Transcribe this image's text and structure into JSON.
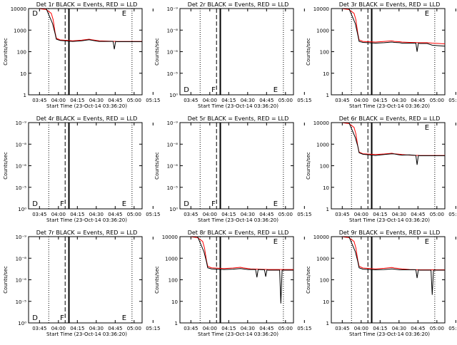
{
  "page": {
    "background": "#ffffff",
    "colors": {
      "events": "#000000",
      "lld": "#ff0000",
      "axis": "#000000"
    }
  },
  "chart_data": [
    {
      "type": "line",
      "detector": "1r",
      "scale": "log",
      "ylim": [
        1,
        10000
      ],
      "title": "Det 1r BLACK = Events, RED = LLD",
      "xlabel": "Start Time (23-Oct-14 03:36:20)",
      "ylabel": "Counts/sec",
      "xticks": [
        "03:45",
        "04:00",
        "04:15",
        "04:30",
        "04:45",
        "05:00",
        "05:15"
      ],
      "yticks": [
        "1",
        "10",
        "100",
        "1000",
        "10000"
      ],
      "markers": [
        {
          "label": "D",
          "t": 3
        },
        {
          "label": "E",
          "t": 74
        }
      ],
      "events_t": [
        0,
        8,
        14,
        19,
        21,
        22,
        25,
        35,
        42,
        48,
        50,
        54,
        56,
        62,
        67,
        68,
        69,
        70,
        76,
        80,
        85,
        90
      ],
      "events_v": [
        10000,
        10000,
        10000,
        2000,
        700,
        380,
        330,
        300,
        320,
        360,
        340,
        310,
        300,
        300,
        300,
        130,
        300,
        290,
        290,
        290,
        290,
        290
      ],
      "lld_t": [
        0,
        8,
        14,
        18,
        19.5,
        21,
        22,
        25,
        35,
        42,
        48,
        50,
        54,
        56,
        62,
        70,
        76,
        80,
        85,
        90
      ],
      "lld_v": [
        10000,
        10000,
        9000,
        6000,
        3000,
        800,
        420,
        350,
        320,
        340,
        380,
        360,
        330,
        320,
        310,
        300,
        300,
        300,
        300,
        300
      ]
    },
    {
      "type": "line",
      "detector": "2r",
      "scale": "exp",
      "title": "Det 2r BLACK = Events, RED = LLD",
      "xlabel": "Start Time (23-Oct-14 03:36:20)",
      "ylabel": "Counts/sec",
      "xticks": [
        "03:45",
        "04:00",
        "04:15",
        "04:30",
        "04:45",
        "05:00",
        "05:15"
      ],
      "yticks": [
        "10⁰",
        "10⁻⁵",
        "10⁻⁶",
        "10⁻⁸",
        "10⁻⁹"
      ],
      "markers": [
        {
          "label": "D",
          "t": 3
        },
        {
          "label": "F",
          "t": 25
        },
        {
          "label": "E",
          "t": 74
        }
      ],
      "events_t": [],
      "events_v": [],
      "lld_t": [],
      "lld_v": []
    },
    {
      "type": "line",
      "detector": "3r",
      "scale": "log",
      "ylim": [
        1,
        10000
      ],
      "title": "Det 3r BLACK = Events, RED = LLD",
      "xlabel": "Start Time (23-Oct-14 03:36:20)",
      "ylabel": "Counts/sec",
      "xticks": [
        "03:45",
        "04:00",
        "04:15",
        "04:30",
        "04:45",
        "05:00",
        "05:15"
      ],
      "yticks": [
        "1",
        "10",
        "100",
        "1000",
        "10000"
      ],
      "markers": [
        {
          "label": "E",
          "t": 74
        }
      ],
      "events_t": [
        0,
        8,
        14,
        19,
        21,
        22,
        25,
        35,
        42,
        48,
        50,
        54,
        56,
        62,
        67,
        68,
        69,
        70,
        76,
        80,
        85,
        90
      ],
      "events_v": [
        10000,
        10000,
        10000,
        2000,
        600,
        300,
        270,
        250,
        260,
        280,
        270,
        260,
        250,
        250,
        250,
        100,
        250,
        240,
        240,
        200,
        190,
        180
      ],
      "lld_t": [
        0,
        8,
        14,
        18,
        19.5,
        21,
        22,
        25,
        35,
        42,
        48,
        50,
        54,
        56,
        62,
        70,
        76,
        80,
        85,
        90
      ],
      "lld_v": [
        10000,
        10000,
        9000,
        6000,
        3000,
        700,
        350,
        300,
        280,
        300,
        320,
        300,
        290,
        280,
        270,
        260,
        260,
        250,
        240,
        230
      ]
    },
    {
      "type": "line",
      "detector": "4r",
      "scale": "exp",
      "title": "Det 4r BLACK = Events, RED = LLD",
      "xlabel": "Start Time (23-Oct-14 03:36:20)",
      "ylabel": "Counts/sec",
      "xticks": [
        "03:45",
        "04:00",
        "04:15",
        "04:30",
        "04:45",
        "05:00",
        "05:15"
      ],
      "yticks": [
        "10⁰",
        "10⁻⁵",
        "10⁻⁶",
        "10⁻⁸",
        "10⁻⁹"
      ],
      "markers": [
        {
          "label": "D",
          "t": 3
        },
        {
          "label": "F",
          "t": 25
        },
        {
          "label": "E",
          "t": 74
        }
      ],
      "events_t": [],
      "events_v": [],
      "lld_t": [],
      "lld_v": []
    },
    {
      "type": "line",
      "detector": "5r",
      "scale": "exp",
      "title": "Det 5r BLACK = Events, RED = LLD",
      "xlabel": "Start Time (23-Oct-14 03:36:20)",
      "ylabel": "Counts/sec",
      "xticks": [
        "03:45",
        "04:00",
        "04:15",
        "04:30",
        "04:45",
        "05:00",
        "05:15"
      ],
      "yticks": [
        "10⁰",
        "10⁻⁵",
        "10⁻⁶",
        "10⁻⁸",
        "10⁻⁹"
      ],
      "markers": [
        {
          "label": "D",
          "t": 3
        },
        {
          "label": "F",
          "t": 25
        },
        {
          "label": "E",
          "t": 74
        }
      ],
      "events_t": [],
      "events_v": [],
      "lld_t": [],
      "lld_v": []
    },
    {
      "type": "line",
      "detector": "6r",
      "scale": "log",
      "ylim": [
        1,
        10000
      ],
      "title": "Det 6r BLACK = Events, RED = LLD",
      "xlabel": "Start Time (23-Oct-14 03:36:20)",
      "ylabel": "Counts/sec",
      "xticks": [
        "03:45",
        "04:00",
        "04:15",
        "04:30",
        "04:45",
        "05:00",
        "05:15"
      ],
      "yticks": [
        "1",
        "10",
        "100",
        "1000",
        "10000"
      ],
      "markers": [
        {
          "label": "E",
          "t": 74
        }
      ],
      "events_t": [
        0,
        8,
        14,
        19,
        21,
        22,
        25,
        35,
        42,
        48,
        50,
        54,
        56,
        62,
        67,
        68,
        69,
        70,
        76,
        80,
        85,
        90
      ],
      "events_v": [
        10000,
        10000,
        10000,
        2000,
        800,
        400,
        340,
        300,
        330,
        360,
        350,
        320,
        310,
        320,
        300,
        110,
        300,
        290,
        290,
        290,
        290,
        290
      ],
      "lld_t": [
        0,
        8,
        14,
        18,
        19.5,
        21,
        22,
        25,
        35,
        42,
        48,
        50,
        54,
        56,
        62,
        70,
        76,
        80,
        85,
        90
      ],
      "lld_v": [
        10000,
        10000,
        9000,
        6000,
        3000,
        800,
        430,
        360,
        330,
        350,
        380,
        360,
        340,
        330,
        310,
        300,
        300,
        300,
        300,
        300
      ]
    },
    {
      "type": "line",
      "detector": "7r",
      "scale": "exp",
      "title": "Det 7r BLACK = Events, RED = LLD",
      "xlabel": "Start Time (23-Oct-14 03:36:20)",
      "ylabel": "Counts/sec",
      "xticks": [
        "03:45",
        "04:00",
        "04:15",
        "04:30",
        "04:45",
        "05:00",
        "05:15"
      ],
      "yticks": [
        "10⁰",
        "10⁻⁵",
        "10⁻⁶",
        "10⁻⁸",
        "10⁻⁹"
      ],
      "markers": [
        {
          "label": "D",
          "t": 3
        },
        {
          "label": "F",
          "t": 25
        },
        {
          "label": "E",
          "t": 74
        }
      ],
      "events_t": [],
      "events_v": [],
      "lld_t": [],
      "lld_v": []
    },
    {
      "type": "line",
      "detector": "8r",
      "scale": "log",
      "ylim": [
        1,
        10000
      ],
      "title": "Det 8r BLACK = Events, RED = LLD",
      "xlabel": "Start Time (23-Oct-14 03:36:20)",
      "ylabel": "Counts/sec",
      "xticks": [
        "03:45",
        "04:00",
        "04:15",
        "04:30",
        "04:45",
        "05:00",
        "05:15"
      ],
      "yticks": [
        "1",
        "10",
        "100",
        "1000",
        "10000"
      ],
      "markers": [
        {
          "label": "E",
          "t": 74
        }
      ],
      "events_t": [
        0,
        8,
        14,
        19,
        21,
        22,
        25,
        35,
        42,
        48,
        50,
        54,
        56,
        60,
        61,
        62,
        67,
        68,
        69,
        70,
        76,
        79,
        80,
        81,
        85,
        90
      ],
      "events_v": [
        10000,
        10000,
        10000,
        2000,
        700,
        360,
        320,
        300,
        310,
        330,
        320,
        300,
        300,
        300,
        130,
        300,
        290,
        140,
        290,
        280,
        280,
        280,
        8,
        280,
        280,
        280
      ],
      "lld_t": [
        0,
        8,
        14,
        18,
        19.5,
        21,
        22,
        25,
        35,
        42,
        48,
        50,
        54,
        56,
        62,
        70,
        76,
        80,
        85,
        90
      ],
      "lld_v": [
        10000,
        10000,
        9000,
        6000,
        3000,
        800,
        420,
        360,
        330,
        350,
        380,
        360,
        330,
        320,
        310,
        300,
        300,
        300,
        300,
        300
      ]
    },
    {
      "type": "line",
      "detector": "9r",
      "scale": "log",
      "ylim": [
        1,
        10000
      ],
      "title": "Det 9r BLACK = Events, RED = LLD",
      "xlabel": "Start Time (23-Oct-14 03:36:20)",
      "ylabel": "Counts/sec",
      "xticks": [
        "03:45",
        "04:00",
        "04:15",
        "04:30",
        "04:45",
        "05:00",
        "05:15"
      ],
      "yticks": [
        "1",
        "10",
        "100",
        "1000",
        "10000"
      ],
      "markers": [
        {
          "label": "E",
          "t": 74
        }
      ],
      "events_t": [
        0,
        8,
        14,
        19,
        21,
        22,
        25,
        35,
        42,
        48,
        50,
        54,
        56,
        62,
        67,
        68,
        69,
        70,
        76,
        79,
        80,
        81,
        85,
        90
      ],
      "events_v": [
        10000,
        10000,
        10000,
        2000,
        700,
        360,
        310,
        290,
        300,
        320,
        310,
        290,
        290,
        290,
        290,
        120,
        290,
        280,
        280,
        280,
        20,
        280,
        280,
        280
      ],
      "lld_t": [
        0,
        8,
        14,
        18,
        19.5,
        21,
        22,
        25,
        35,
        42,
        48,
        50,
        54,
        56,
        62,
        70,
        76,
        80,
        85,
        90
      ],
      "lld_v": [
        10000,
        10000,
        9000,
        6000,
        3000,
        800,
        420,
        350,
        320,
        340,
        370,
        350,
        330,
        320,
        300,
        290,
        290,
        290,
        290,
        290
      ]
    }
  ]
}
